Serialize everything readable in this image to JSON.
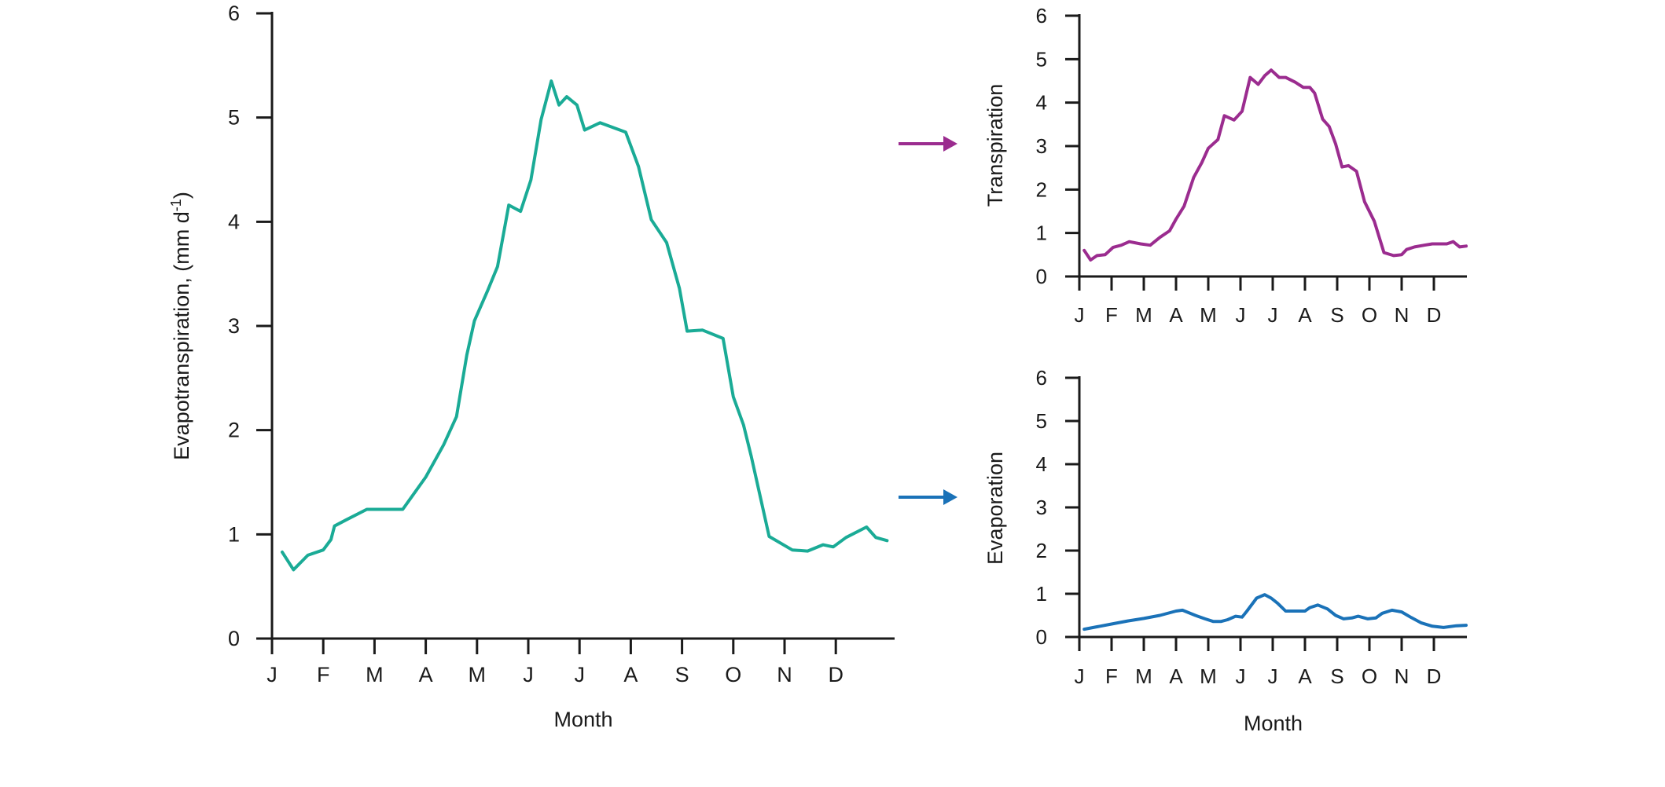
{
  "chart_data": [
    {
      "id": "evapotranspiration",
      "type": "line",
      "xlabel": "Month",
      "ylabel": "Evapotranspiration, (mm d",
      "ylabel_sup": "-1",
      "ylabel_close": ")",
      "ylim": [
        0,
        6
      ],
      "yticks": [
        0,
        1,
        2,
        3,
        4,
        5,
        6
      ],
      "xlim": [
        0,
        12.3
      ],
      "month_ticks": [
        "J",
        "F",
        "M",
        "A",
        "M",
        "J",
        "J",
        "A",
        "S",
        "O",
        "N",
        "D"
      ],
      "series": [
        {
          "color": "#1aab96",
          "x": [
            0.2,
            0.42,
            0.7,
            1.0,
            1.15,
            1.22,
            1.45,
            1.85,
            2.1,
            2.55,
            3.0,
            3.35,
            3.6,
            3.8,
            3.95,
            4.2,
            4.4,
            4.62,
            4.85,
            5.05,
            5.25,
            5.45,
            5.6,
            5.75,
            5.95,
            6.1,
            6.4,
            6.9,
            7.15,
            7.4,
            7.7,
            7.95,
            8.1,
            8.4,
            8.8,
            9.0,
            9.2,
            9.35,
            9.7,
            10.15,
            10.45,
            10.75,
            10.95,
            11.2,
            11.6,
            11.78,
            12.0
          ],
          "y": [
            0.83,
            0.66,
            0.8,
            0.85,
            0.95,
            1.08,
            1.14,
            1.24,
            1.24,
            1.24,
            1.55,
            1.86,
            2.13,
            2.72,
            3.05,
            3.33,
            3.57,
            4.16,
            4.1,
            4.4,
            4.98,
            5.35,
            5.12,
            5.2,
            5.12,
            4.88,
            4.95,
            4.86,
            4.53,
            4.02,
            3.8,
            3.36,
            2.95,
            2.96,
            2.88,
            2.32,
            2.05,
            1.75,
            0.98,
            0.85,
            0.84,
            0.9,
            0.88,
            0.97,
            1.07,
            0.97,
            0.94
          ]
        }
      ]
    },
    {
      "id": "transpiration",
      "type": "line",
      "xlabel": "",
      "ylabel": "Transpiration",
      "ylim": [
        0,
        6
      ],
      "yticks": [
        0,
        1,
        2,
        3,
        4,
        5,
        6
      ],
      "xlim": [
        0,
        12.3
      ],
      "month_ticks": [
        "J",
        "F",
        "M",
        "A",
        "M",
        "J",
        "J",
        "A",
        "S",
        "O",
        "N",
        "D"
      ],
      "series": [
        {
          "color": "#9b2c8f",
          "x": [
            0.15,
            0.35,
            0.55,
            0.8,
            1.05,
            1.3,
            1.55,
            1.9,
            2.2,
            2.5,
            2.8,
            3.0,
            3.25,
            3.55,
            3.8,
            4.0,
            4.3,
            4.5,
            4.8,
            5.05,
            5.3,
            5.55,
            5.75,
            5.95,
            6.2,
            6.4,
            6.7,
            6.95,
            7.15,
            7.3,
            7.55,
            7.75,
            7.95,
            8.15,
            8.35,
            8.6,
            8.85,
            9.15,
            9.45,
            9.75,
            10.0,
            10.15,
            10.4,
            10.7,
            10.95,
            11.4,
            11.6,
            11.8,
            12.0
          ],
          "y": [
            0.6,
            0.38,
            0.48,
            0.5,
            0.67,
            0.72,
            0.8,
            0.75,
            0.72,
            0.9,
            1.05,
            1.32,
            1.62,
            2.28,
            2.62,
            2.95,
            3.15,
            3.7,
            3.6,
            3.8,
            4.58,
            4.42,
            4.62,
            4.75,
            4.58,
            4.58,
            4.47,
            4.35,
            4.35,
            4.22,
            3.62,
            3.45,
            3.05,
            2.52,
            2.55,
            2.42,
            1.72,
            1.27,
            0.55,
            0.48,
            0.5,
            0.62,
            0.68,
            0.72,
            0.75,
            0.75,
            0.8,
            0.68,
            0.7
          ]
        }
      ]
    },
    {
      "id": "evaporation",
      "type": "line",
      "xlabel": "Month",
      "ylabel": "Evaporation",
      "ylim": [
        0,
        6
      ],
      "yticks": [
        0,
        1,
        2,
        3,
        4,
        5,
        6
      ],
      "xlim": [
        0,
        12.3
      ],
      "month_ticks": [
        "J",
        "F",
        "M",
        "A",
        "M",
        "J",
        "J",
        "A",
        "S",
        "O",
        "N",
        "D"
      ],
      "series": [
        {
          "color": "#1a72b8",
          "x": [
            0.15,
            0.5,
            1.0,
            1.5,
            2.0,
            2.5,
            3.0,
            3.2,
            3.6,
            3.9,
            4.15,
            4.4,
            4.6,
            4.85,
            5.05,
            5.2,
            5.5,
            5.75,
            5.95,
            6.15,
            6.4,
            6.7,
            7.0,
            7.15,
            7.4,
            7.7,
            7.95,
            8.2,
            8.45,
            8.65,
            8.95,
            9.2,
            9.4,
            9.7,
            10.0,
            10.3,
            10.6,
            10.95,
            11.3,
            11.7,
            12.0
          ],
          "y": [
            0.18,
            0.23,
            0.3,
            0.37,
            0.43,
            0.5,
            0.6,
            0.62,
            0.5,
            0.42,
            0.36,
            0.36,
            0.4,
            0.48,
            0.46,
            0.6,
            0.9,
            0.98,
            0.9,
            0.78,
            0.6,
            0.6,
            0.6,
            0.68,
            0.74,
            0.65,
            0.5,
            0.42,
            0.44,
            0.48,
            0.42,
            0.44,
            0.55,
            0.62,
            0.58,
            0.45,
            0.33,
            0.25,
            0.22,
            0.26,
            0.27
          ]
        }
      ]
    }
  ],
  "arrows": [
    {
      "target": "transpiration",
      "color": "#9b2c8f"
    },
    {
      "target": "evaporation",
      "color": "#1a72b8"
    }
  ]
}
